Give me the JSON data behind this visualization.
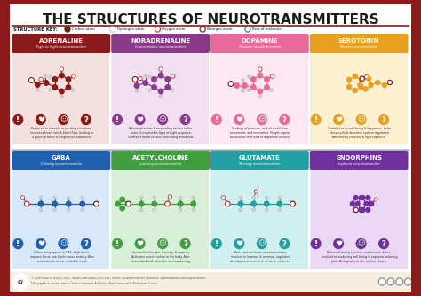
{
  "title": "THE STRUCTURES OF NEUROTRANSMITTERS",
  "bg_outer": "#8b1a1a",
  "bg_inner": "#ffffff",
  "title_color": "#1a1a1a",
  "border_color": "#8b1a1a",
  "key_label": "STRUCTURE KEY:",
  "key_items": [
    {
      "label": "Carbon atom",
      "color": "#7b1818",
      "ring": false
    },
    {
      "label": "Hydrogen atom",
      "color": "#cccccc",
      "ring": true
    },
    {
      "label": "Oxygen atom",
      "color": "#cc3333",
      "ring": true
    },
    {
      "label": "Nitrogen atom",
      "color": "#7b1818",
      "ring": true
    },
    {
      "label": "Rest of molecule",
      "color": "#666666",
      "ring": true
    }
  ],
  "top_row": [
    {
      "name": "ADRENALINE",
      "subtitle": "Fight or flight neurotransmitter",
      "bg": "#8b1a1a",
      "light_bg": "#f5e0e0",
      "mol_color": "#8b1a1a",
      "icon_color": "#8b1a1a",
      "desc": "Produced in stressful or exciting situations.\nIncreases heart rate & blood flow, leading to\na physical boost & heightened awareness."
    },
    {
      "name": "NORADRENALINE",
      "subtitle": "Concentration neurotransmitter",
      "bg": "#8b3a8b",
      "light_bg": "#f0e0f0",
      "mol_color": "#8b3a8b",
      "icon_color": "#8b3a8b",
      "desc": "Affects attention & responding actions in the\nbrain, & involved in fight or flight response.\nContracts blood vessels, increasing blood flow."
    },
    {
      "name": "DOPAMINE",
      "subtitle": "Pleasure neurotransmitter",
      "bg": "#e8699a",
      "light_bg": "#fce8f0",
      "mol_color": "#e8699a",
      "icon_color": "#e8699a",
      "desc": "Feelings of pleasure, and also addiction,\nmovement, and motivation. People repeat\nbehaviours that lead to dopamine release."
    },
    {
      "name": "SEROTONIN",
      "subtitle": "Mood neurotransmitter",
      "bg": "#e8a020",
      "light_bg": "#fdf0d0",
      "mol_color": "#e8a020",
      "icon_color": "#e8a020",
      "desc": "Contributes to well-being & happiness, helps\nsleep cycle & digestive system regulation.\nAffected by exercise & light exposure."
    }
  ],
  "bottom_row": [
    {
      "name": "GABA",
      "subtitle": "Calming neurotransmitter",
      "bg": "#2060b0",
      "light_bg": "#d8e8f8",
      "mol_color": "#2060b0",
      "icon_color": "#2060b0",
      "desc": "Calms firing nerves in CNS. High levels\nimprove focus, low levels cause anxiety. Also\ncontributes to motor control & vision."
    },
    {
      "name": "ACETYLCHOLINE",
      "subtitle": "Learning neurotransmitter",
      "bg": "#40a040",
      "light_bg": "#d8f0d8",
      "mol_color": "#40a040",
      "icon_color": "#40a040",
      "desc": "Involved in thought, learning, & memory.\nActivates muscle action in the body. Also\nassociated with attention and awakening."
    },
    {
      "name": "GLUTAMATE",
      "subtitle": "Memory neurotransmitter",
      "bg": "#20a0a0",
      "light_bg": "#d0f0f0",
      "mol_color": "#20a0a0",
      "icon_color": "#20a0a0",
      "desc": "Most common brain neurotransmitter,\ninvolved in learning & memory, regulates\ndevelopment & creation of nerve contacts."
    },
    {
      "name": "ENDORPHINS",
      "subtitle": "Euphoria neurotransmitter",
      "bg": "#7030a0",
      "light_bg": "#ead8f5",
      "mol_color": "#7030a0",
      "icon_color": "#7030a0",
      "desc": "Released during exercise, excitement, & sex,\ninvolved in producing well-being & euphoria, reducing\npain. Biologically active section shown."
    }
  ],
  "footer_bg": "#f5eedc",
  "footer_text": "© COMPOUND INTEREST 2015 - WWW.COMPOUNDCHEM.COM | Twitter: @compoundchem | Facebook: www.facebook.com/compoundchem",
  "footer_text2": "This graphic is shared under a Creative Commons Attribution-NonCommercial-NoDerivatives licence."
}
